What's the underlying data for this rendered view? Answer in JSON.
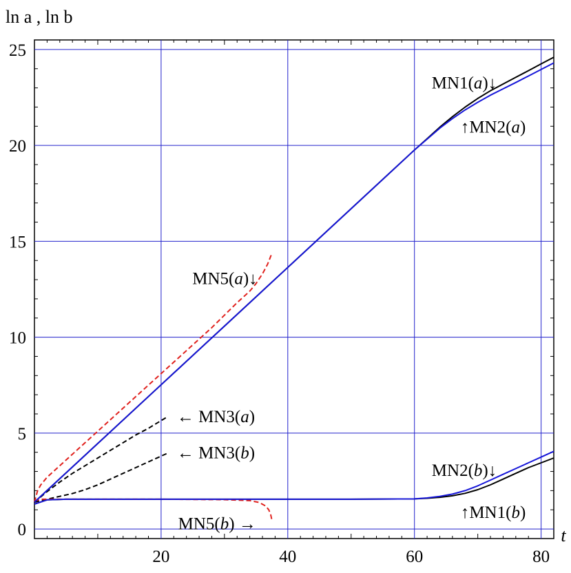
{
  "chart_data": {
    "type": "line",
    "ylabel": "ln a ,  ln b",
    "xlabel": "t",
    "xlim": [
      0,
      82
    ],
    "ylim": [
      -0.5,
      25.5
    ],
    "x_ticks": [
      20,
      40,
      60,
      80
    ],
    "y_ticks": [
      0,
      5,
      10,
      15,
      20,
      25
    ],
    "grid": true,
    "grid_color": "#2020cc",
    "series": [
      {
        "name": "MN1(a)",
        "color": "#000000",
        "style": "solid",
        "x": [
          0,
          10,
          20,
          30,
          40,
          50,
          60,
          62,
          64,
          66,
          68,
          70,
          72,
          74,
          76,
          78,
          80,
          82
        ],
        "y": [
          1.4,
          4.46,
          7.52,
          10.58,
          13.64,
          16.7,
          19.76,
          20.35,
          20.95,
          21.5,
          22.0,
          22.45,
          22.85,
          23.2,
          23.55,
          23.9,
          24.25,
          24.6
        ]
      },
      {
        "name": "MN2(a)",
        "color": "#1515d8",
        "style": "solid",
        "x": [
          0,
          10,
          20,
          30,
          40,
          50,
          60,
          62,
          64,
          66,
          68,
          70,
          72,
          74,
          76,
          78,
          80,
          82
        ],
        "y": [
          1.4,
          4.46,
          7.52,
          10.58,
          13.64,
          16.7,
          19.76,
          20.33,
          20.9,
          21.4,
          21.85,
          22.25,
          22.62,
          22.95,
          23.28,
          23.62,
          23.96,
          24.3
        ]
      },
      {
        "name": "MN1(b)",
        "color": "#000000",
        "style": "solid",
        "x": [
          0,
          2,
          5,
          10,
          20,
          30,
          40,
          50,
          60,
          62,
          64,
          66,
          68,
          70,
          72,
          74,
          76,
          78,
          80,
          82
        ],
        "y": [
          1.3,
          1.52,
          1.55,
          1.55,
          1.55,
          1.55,
          1.55,
          1.55,
          1.57,
          1.6,
          1.65,
          1.73,
          1.86,
          2.05,
          2.3,
          2.6,
          2.9,
          3.2,
          3.45,
          3.7
        ]
      },
      {
        "name": "MN2(b)",
        "color": "#1515d8",
        "style": "solid",
        "x": [
          0,
          2,
          5,
          10,
          20,
          30,
          40,
          50,
          60,
          62,
          64,
          66,
          68,
          70,
          72,
          74,
          76,
          78,
          80,
          82
        ],
        "y": [
          1.3,
          1.52,
          1.55,
          1.55,
          1.55,
          1.55,
          1.55,
          1.55,
          1.57,
          1.62,
          1.7,
          1.82,
          2.0,
          2.25,
          2.55,
          2.85,
          3.15,
          3.45,
          3.75,
          4.05
        ]
      },
      {
        "name": "MN3(a)",
        "color": "#000000",
        "style": "dashed",
        "x": [
          0,
          2,
          4,
          6,
          8,
          10,
          12,
          14,
          16,
          18,
          20,
          21
        ],
        "y": [
          1.4,
          1.95,
          2.45,
          2.9,
          3.3,
          3.7,
          4.1,
          4.5,
          4.9,
          5.25,
          5.65,
          5.85
        ]
      },
      {
        "name": "MN3(b)",
        "color": "#000000",
        "style": "dashed",
        "x": [
          0,
          2,
          4,
          6,
          8,
          10,
          12,
          14,
          16,
          18,
          20,
          21
        ],
        "y": [
          1.4,
          1.55,
          1.7,
          1.85,
          2.05,
          2.3,
          2.6,
          2.9,
          3.2,
          3.5,
          3.8,
          3.95
        ]
      },
      {
        "name": "MN5(a)",
        "color": "#e0201c",
        "style": "dashed",
        "x": [
          0,
          0.5,
          1,
          2,
          4,
          8,
          12,
          16,
          20,
          24,
          28,
          32,
          34,
          35,
          36,
          36.8,
          37.4
        ],
        "y": [
          1.4,
          2.0,
          2.3,
          2.7,
          3.3,
          4.5,
          5.7,
          6.9,
          8.1,
          9.3,
          10.5,
          11.8,
          12.4,
          12.8,
          13.3,
          13.8,
          14.3
        ]
      },
      {
        "name": "MN5(b)",
        "color": "#e0201c",
        "style": "dashed",
        "x": [
          0,
          1,
          2,
          5,
          10,
          20,
          30,
          34,
          35.5,
          36.5,
          37,
          37.3,
          37.5
        ],
        "y": [
          1.45,
          1.55,
          1.55,
          1.55,
          1.55,
          1.55,
          1.53,
          1.48,
          1.38,
          1.2,
          1.0,
          0.75,
          0.45
        ]
      }
    ],
    "annotations": [
      {
        "text": "MN1(a)",
        "arrow": "↓",
        "side": "after",
        "x": 73,
        "y": 23.3
      },
      {
        "text": "MN2(a)",
        "arrow": "↑",
        "side": "before",
        "x": 67.3,
        "y": 21.0
      },
      {
        "text": "MN5(a)",
        "arrow": "↓",
        "side": "after",
        "x": 35.2,
        "y": 13.1
      },
      {
        "text": "MN3(a)",
        "arrow": "←",
        "side": "before",
        "x": 22.5,
        "y": 5.9
      },
      {
        "text": "MN3(b)",
        "arrow": "←",
        "side": "before",
        "x": 22.5,
        "y": 4.0
      },
      {
        "text": "MN2(b)",
        "arrow": "↓",
        "side": "after",
        "x": 73,
        "y": 3.1
      },
      {
        "text": "MN1(b)",
        "arrow": "↑",
        "side": "before",
        "x": 67.3,
        "y": 0.9
      },
      {
        "text": "MN5(b)",
        "arrow": "→",
        "side": "after",
        "x": 35,
        "y": 0.3
      }
    ]
  }
}
